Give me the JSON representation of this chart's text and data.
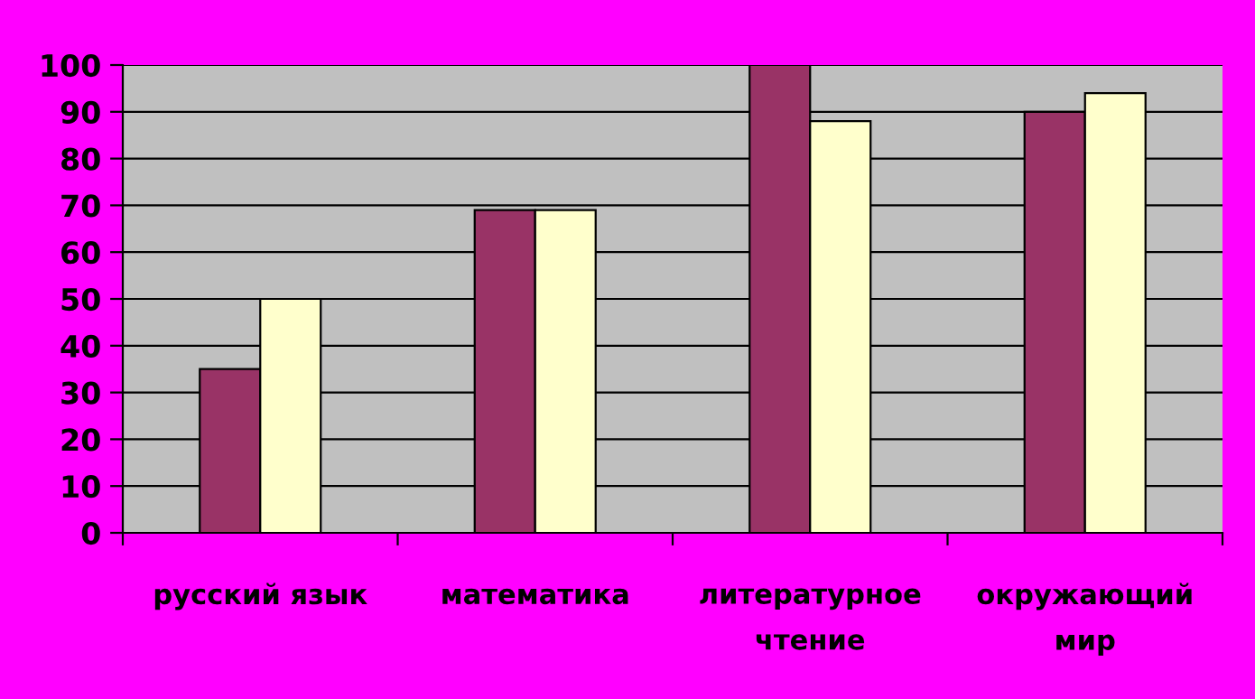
{
  "chart_data": {
    "type": "bar",
    "categories": [
      "русский язык",
      "математика",
      "литературное чтение",
      "окружающий мир"
    ],
    "series": [
      {
        "color": "#993366",
        "values": [
          35,
          69,
          100,
          90
        ]
      },
      {
        "color": "#ffffcc",
        "values": [
          50,
          69,
          88,
          94
        ]
      }
    ],
    "ylim": [
      0,
      100
    ],
    "yticks": [
      0,
      10,
      20,
      30,
      40,
      50,
      60,
      70,
      80,
      90,
      100
    ],
    "grid": "y",
    "legend": false
  }
}
